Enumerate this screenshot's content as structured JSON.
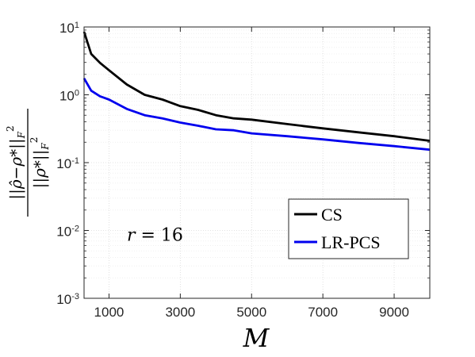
{
  "chart_data": {
    "type": "line",
    "xlabel": "M",
    "ylabel": {
      "numerator": "||ρ̂−ρ*||",
      "denominator": "||ρ*||",
      "norm_subscript": "F",
      "power": "2"
    },
    "xlim": [
      300,
      10000
    ],
    "ylim": [
      0.001,
      10
    ],
    "yscale": "log",
    "grid": true,
    "xticks": [
      1000,
      3000,
      5000,
      7000,
      9000
    ],
    "xtick_labels": [
      "1000",
      "3000",
      "5000",
      "7000",
      "9000"
    ],
    "yticks": [
      {
        "value": 0.001,
        "base": "10",
        "exp": "-3"
      },
      {
        "value": 0.01,
        "base": "10",
        "exp": "-2"
      },
      {
        "value": 0.1,
        "base": "10",
        "exp": "-1"
      },
      {
        "value": 1,
        "base": "10",
        "exp": "0"
      },
      {
        "value": 10,
        "base": "10",
        "exp": "1"
      }
    ],
    "legend_position": "bottom-right",
    "annotation": {
      "text_var": "r",
      "text_eq": " = 16",
      "x": 1500,
      "y": 0.007
    },
    "series": [
      {
        "name": "CS",
        "color": "#000000",
        "x": [
          300,
          500,
          750,
          1000,
          1500,
          2000,
          2500,
          3000,
          3500,
          4000,
          4500,
          5000,
          6000,
          7000,
          8000,
          9000,
          10000
        ],
        "y": [
          8.5,
          4.0,
          2.95,
          2.3,
          1.42,
          1.0,
          0.85,
          0.68,
          0.6,
          0.5,
          0.45,
          0.43,
          0.37,
          0.32,
          0.28,
          0.245,
          0.21
        ]
      },
      {
        "name": "LR-PCS",
        "color": "#0000ee",
        "x": [
          300,
          500,
          750,
          1000,
          1500,
          2000,
          2500,
          3000,
          3500,
          4000,
          4500,
          5000,
          6000,
          7000,
          8000,
          9000,
          10000
        ],
        "y": [
          1.75,
          1.15,
          0.95,
          0.85,
          0.62,
          0.5,
          0.45,
          0.39,
          0.35,
          0.31,
          0.3,
          0.27,
          0.245,
          0.22,
          0.195,
          0.175,
          0.155
        ]
      }
    ]
  }
}
